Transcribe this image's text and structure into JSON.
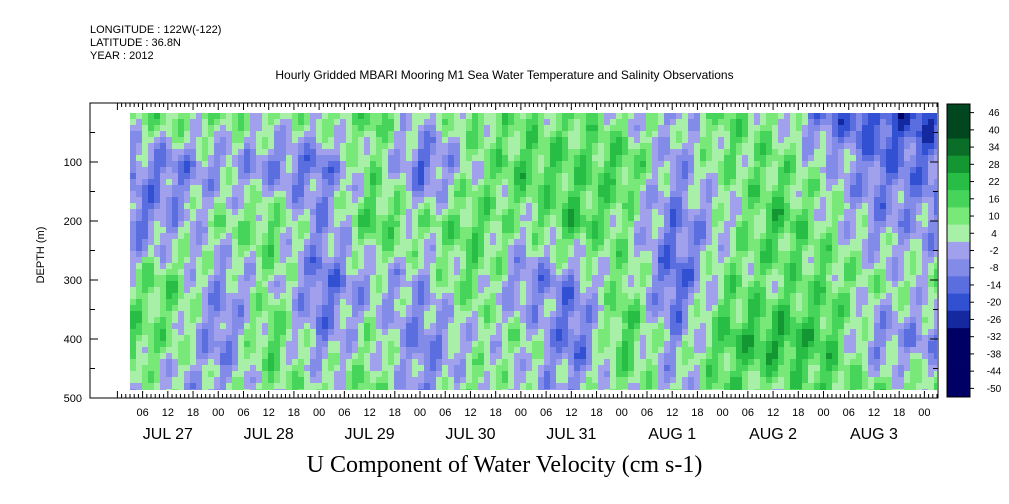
{
  "meta": {
    "longitude": "LONGITUDE : 122W(-122)",
    "latitude": "LATITUDE : 36.8N",
    "year": "YEAR : 2012"
  },
  "colors": {
    "negative_strong": "#000066",
    "negative_mid": "#3355dd",
    "negative_weak": "#b8b8f0",
    "positive_weak": "#a8f0a8",
    "positive_mid": "#22cc44",
    "positive_strong": "#005522"
  },
  "chart_data": {
    "type": "heatmap",
    "title": "Hourly Gridded MBARI Mooring M1 Sea Water Temperature and Salinity Observations",
    "xlabel": "U Component of Water Velocity (cm s-1)",
    "ylabel": "DEPTH (m)",
    "ylim": [
      500,
      0
    ],
    "y_ticks": [
      "100",
      "200",
      "300",
      "400",
      "500"
    ],
    "x_hour_ticks": [
      "06",
      "12",
      "18",
      "00",
      "06",
      "12",
      "18",
      "00",
      "06",
      "12",
      "18",
      "00",
      "06",
      "12",
      "18",
      "00",
      "06",
      "12",
      "18",
      "00",
      "06",
      "12",
      "18",
      "00",
      "06",
      "12",
      "18",
      "00",
      "06",
      "12",
      "18",
      "00"
    ],
    "x_day_labels": [
      "JUL 27",
      "JUL 28",
      "JUL 29",
      "JUL 30",
      "JUL 31",
      "AUG  1",
      "AUG  2",
      "AUG  3"
    ],
    "colorbar_levels": [
      "46",
      "40",
      "34",
      "28",
      "22",
      "16",
      "10",
      "4",
      "-2",
      "-8",
      "-14",
      "-20",
      "-26",
      "-32",
      "-38",
      "-44",
      "-50"
    ],
    "depth_profiles": {
      "depths_m": [
        20,
        100,
        200,
        300,
        400,
        480
      ],
      "times_hours_since_jul27_00": [
        4,
        12,
        24,
        36,
        48,
        60,
        72,
        84,
        96,
        108,
        120,
        132,
        144,
        156,
        168,
        180
      ],
      "u_cm_s": [
        [
          6,
          -10,
          -14,
          6,
          10,
          2
        ],
        [
          8,
          -14,
          -8,
          10,
          6,
          -4
        ],
        [
          6,
          -6,
          4,
          -10,
          -14,
          -4
        ],
        [
          2,
          -12,
          10,
          4,
          12,
          6
        ],
        [
          4,
          -14,
          -10,
          -16,
          -10,
          2
        ],
        [
          10,
          6,
          14,
          -6,
          4,
          8
        ],
        [
          -4,
          -18,
          4,
          -6,
          -14,
          -10
        ],
        [
          8,
          2,
          12,
          10,
          -2,
          6
        ],
        [
          6,
          14,
          2,
          -12,
          4,
          -4
        ],
        [
          8,
          10,
          16,
          -12,
          -18,
          -6
        ],
        [
          2,
          14,
          4,
          10,
          14,
          6
        ],
        [
          -6,
          -8,
          -14,
          -20,
          -8,
          -4
        ],
        [
          10,
          6,
          -2,
          8,
          14,
          10
        ],
        [
          4,
          8,
          16,
          6,
          20,
          4
        ],
        [
          -16,
          -2,
          4,
          10,
          14,
          12
        ],
        [
          -22,
          -14,
          -8,
          2,
          -10,
          6
        ]
      ]
    }
  }
}
